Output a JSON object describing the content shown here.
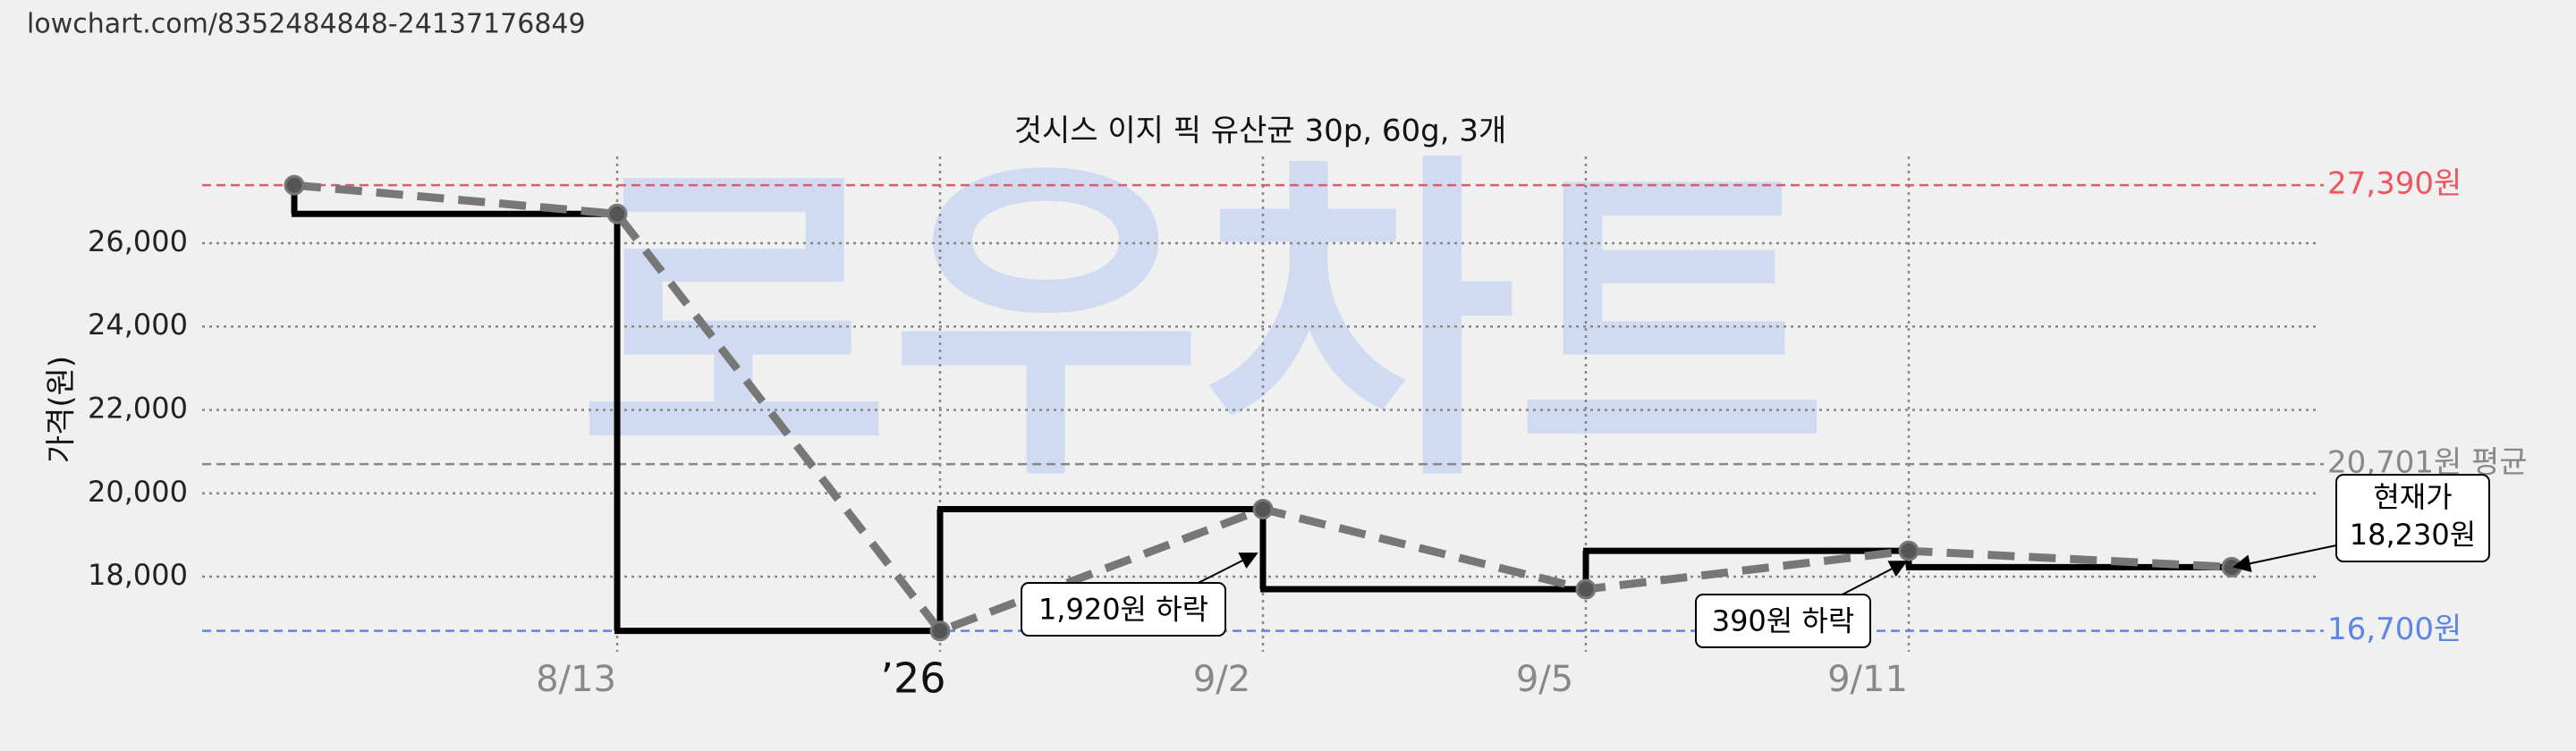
{
  "url": "lowchart.com/8352484848-24137176849",
  "chart_data": {
    "type": "line",
    "title": "것시스 이지 픽 유산균 30p, 60g, 3개",
    "y_label": "가격(원)",
    "watermark": "로우차트",
    "categories": [
      null,
      "8/13",
      "’26",
      "9/2",
      "9/5",
      "9/11",
      null
    ],
    "series": [
      {
        "name": "가격",
        "color": "#777777",
        "values": [
          27390,
          26700,
          16700,
          19620,
          17700,
          18620,
          18230
        ]
      }
    ],
    "step_color": "#000000",
    "ylim": [
      16200,
      27800
    ],
    "yticks": [
      {
        "value": 18000,
        "label": "18,000"
      },
      {
        "value": 20000,
        "label": "20,000"
      },
      {
        "value": 22000,
        "label": "22,000"
      },
      {
        "value": 24000,
        "label": "24,000"
      },
      {
        "value": 26000,
        "label": "26,000"
      }
    ],
    "grid": true,
    "reference_lines": [
      {
        "value": 27390,
        "label": "27,390원",
        "color": "#ee5560"
      },
      {
        "value": 20701,
        "label": "20,701원 평균",
        "color": "#888888"
      },
      {
        "value": 16700,
        "label": "16,700원",
        "color": "#5b86e5"
      }
    ],
    "annotations": [
      {
        "text": "1,920원 하락"
      },
      {
        "text": "390원 하락"
      },
      {
        "lines": [
          "현재가",
          "18,230원"
        ]
      }
    ]
  }
}
